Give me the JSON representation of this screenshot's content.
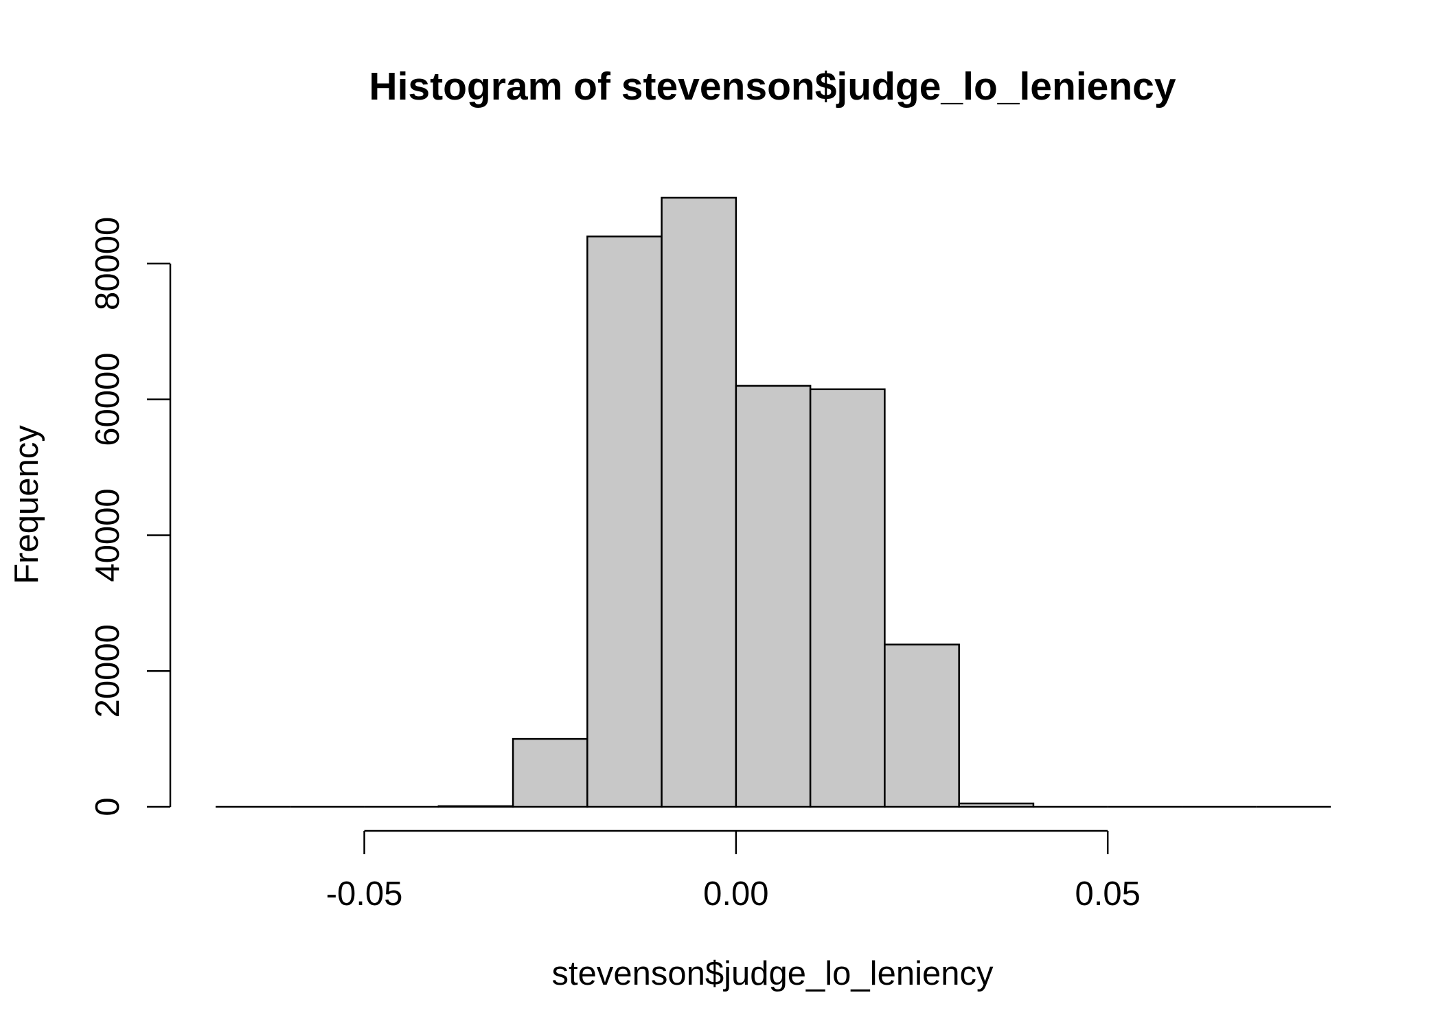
{
  "chart_data": {
    "type": "bar",
    "subtype": "histogram",
    "title": "Histogram of stevenson$judge_lo_leniency",
    "xlabel": "stevenson$judge_lo_leniency",
    "ylabel": "Frequency",
    "bar_color": "#c8c8c8",
    "border_color": "#000000",
    "xlim": [
      -0.07,
      0.08
    ],
    "ylim": [
      0,
      90000
    ],
    "x_ticks": [
      {
        "value": -0.05,
        "label": "-0.05"
      },
      {
        "value": 0.0,
        "label": "0.00"
      },
      {
        "value": 0.05,
        "label": "0.05"
      }
    ],
    "y_ticks": [
      {
        "value": 0,
        "label": "0"
      },
      {
        "value": 20000,
        "label": "20000"
      },
      {
        "value": 40000,
        "label": "40000"
      },
      {
        "value": 60000,
        "label": "60000"
      },
      {
        "value": 80000,
        "label": "80000"
      }
    ],
    "bins": [
      {
        "start": -0.07,
        "end": -0.06,
        "count": 0
      },
      {
        "start": -0.06,
        "end": -0.05,
        "count": 0
      },
      {
        "start": -0.05,
        "end": -0.04,
        "count": 0
      },
      {
        "start": -0.04,
        "end": -0.03,
        "count": 100
      },
      {
        "start": -0.03,
        "end": -0.02,
        "count": 10000
      },
      {
        "start": -0.02,
        "end": -0.01,
        "count": 84000
      },
      {
        "start": -0.01,
        "end": 0.0,
        "count": 89700
      },
      {
        "start": 0.0,
        "end": 0.01,
        "count": 62000
      },
      {
        "start": 0.01,
        "end": 0.02,
        "count": 61500
      },
      {
        "start": 0.02,
        "end": 0.03,
        "count": 23900
      },
      {
        "start": 0.03,
        "end": 0.04,
        "count": 500
      },
      {
        "start": 0.04,
        "end": 0.05,
        "count": 0
      },
      {
        "start": 0.05,
        "end": 0.06,
        "count": 0
      },
      {
        "start": 0.06,
        "end": 0.07,
        "count": 0
      },
      {
        "start": 0.07,
        "end": 0.08,
        "count": 0
      }
    ]
  }
}
